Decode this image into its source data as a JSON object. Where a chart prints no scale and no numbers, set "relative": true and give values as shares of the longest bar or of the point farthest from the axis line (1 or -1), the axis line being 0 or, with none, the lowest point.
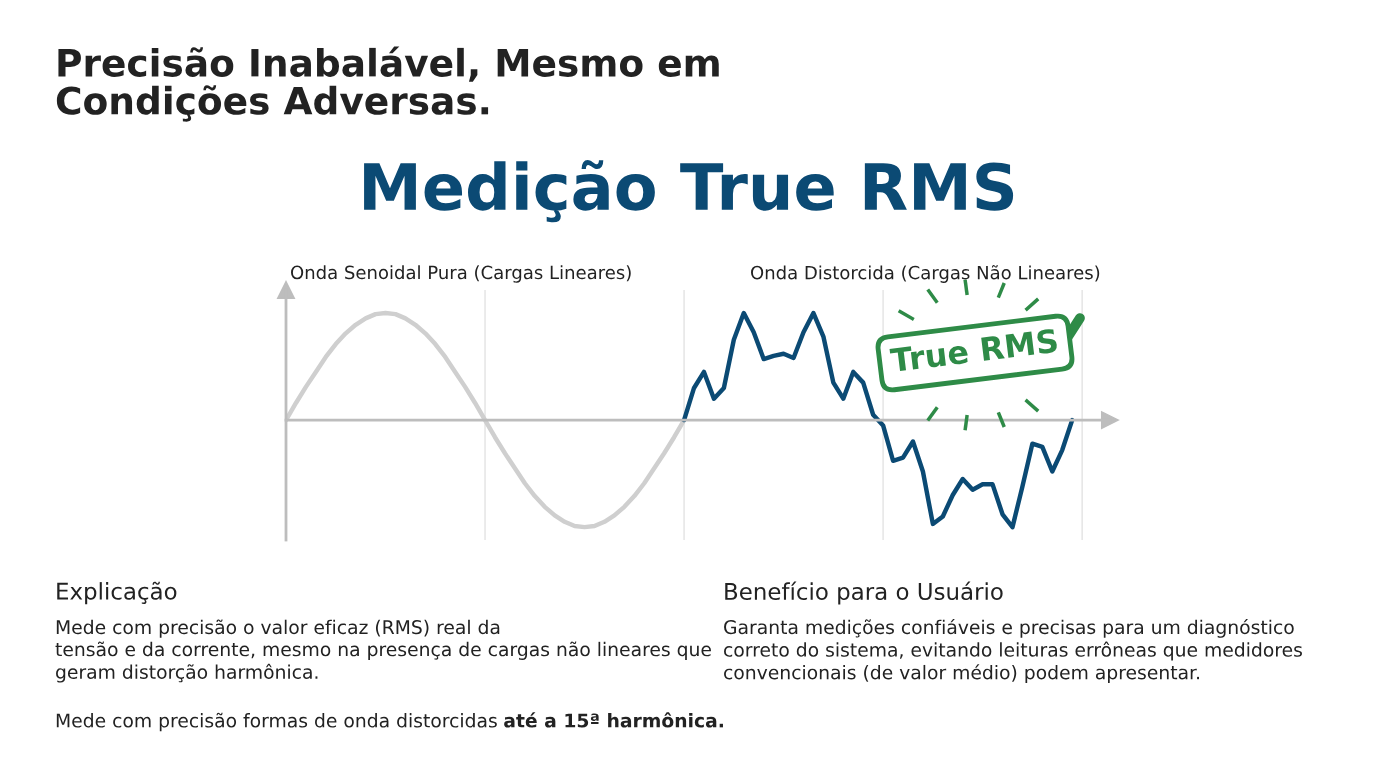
{
  "chart_data": {
    "type": "line",
    "title": "Precisão Inabalável, Mesmo em\nCondições Adversas.",
    "subtitle": "Medição True RMS",
    "relative": true,
    "categories": [
      null,
      null,
      null,
      null,
      null,
      null,
      null,
      null,
      null,
      null,
      null,
      null,
      null,
      null,
      null,
      null,
      null,
      null,
      null,
      null,
      null,
      null,
      null,
      null,
      null,
      null,
      null,
      null,
      null,
      null,
      null,
      null,
      null,
      null,
      null,
      null,
      null,
      null,
      null,
      null,
      null,
      null,
      null,
      null,
      null,
      null,
      null,
      null,
      null,
      null,
      null,
      null,
      null,
      null,
      null,
      null,
      null,
      null,
      null,
      null,
      null,
      null,
      null,
      null,
      null,
      null,
      null,
      null,
      null,
      null,
      null,
      null,
      null,
      null,
      null,
      null,
      null,
      null,
      null,
      null
    ],
    "grid": "x",
    "legend": false,
    "marker": "none",
    "line_style": "solid",
    "series": [
      {
        "color": "#cfcfcf",
        "values": [
          0,
          0.16,
          0.31,
          0.45,
          0.59,
          0.71,
          0.81,
          0.89,
          0.95,
          0.99,
          1,
          0.99,
          0.95,
          0.89,
          0.81,
          0.71,
          0.59,
          0.45,
          0.31,
          0.16,
          0,
          -0.16,
          -0.31,
          -0.45,
          -0.59,
          -0.71,
          -0.81,
          -0.89,
          -0.95,
          -0.99,
          -1,
          -0.99,
          -0.95,
          -0.89,
          -0.81,
          -0.71,
          -0.59,
          -0.45,
          -0.31,
          -0.16,
          0,
          null,
          null,
          null,
          null,
          null,
          null,
          null,
          null,
          null,
          null,
          null,
          null,
          null,
          null,
          null,
          null,
          null,
          null,
          null,
          null,
          null,
          null,
          null,
          null,
          null,
          null,
          null,
          null,
          null,
          null,
          null,
          null,
          null,
          null,
          null,
          null,
          null,
          null,
          null
        ]
      },
      {
        "color": "#0b4a74",
        "values": [
          null,
          null,
          null,
          null,
          null,
          null,
          null,
          null,
          null,
          null,
          null,
          null,
          null,
          null,
          null,
          null,
          null,
          null,
          null,
          null,
          null,
          null,
          null,
          null,
          null,
          null,
          null,
          null,
          null,
          null,
          null,
          null,
          null,
          null,
          null,
          null,
          null,
          null,
          null,
          null,
          0,
          0.3,
          0.45,
          0.2,
          0.3,
          0.75,
          1.0,
          0.82,
          0.57,
          0.6,
          0.62,
          0.58,
          0.82,
          1.0,
          0.78,
          0.35,
          0.2,
          0.45,
          0.35,
          0.05,
          -0.05,
          -0.38,
          -0.35,
          -0.2,
          -0.48,
          -0.97,
          -0.9,
          -0.7,
          -0.55,
          -0.65,
          -0.6,
          -0.6,
          -0.88,
          -1.0,
          -0.62,
          -0.22,
          -0.25,
          -0.48,
          -0.28,
          0
        ]
      }
    ],
    "annotations": [
      "Onda Senoidal Pura (Cargas Lineares)",
      "Onda Distorcida (Cargas Não Lineares)",
      "True RMS",
      "Explicação",
      "Mede com precisão o valor eficaz (RMS) real da\ntensão e da corrente, mesmo na presença de cargas não lineares que\ngeram distorção harmônica.",
      "Mede com precisão formas de onda distorcidas",
      "até a 15ª harmônica.",
      "Benefício para o Usuário",
      "Garanta medições confiáveis e precisas para um diagnóstico\ncorreto do sistema, evitando leituras errôneas que medidores\nconvencionais (de valor médio) podem apresentar."
    ]
  }
}
